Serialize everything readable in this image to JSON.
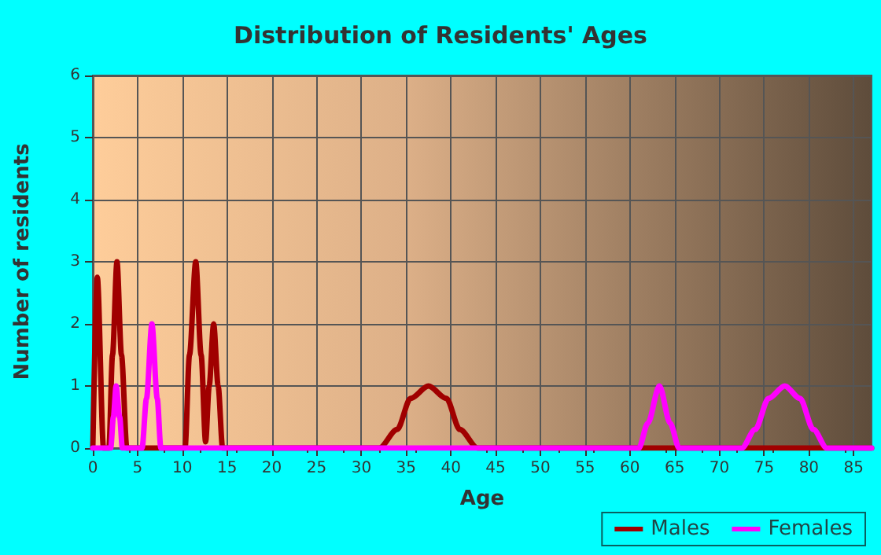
{
  "chart_data": {
    "type": "line",
    "title": "Distribution of Residents' Ages",
    "xlabel": "Age",
    "ylabel": "Number of residents",
    "xlim": [
      0,
      87
    ],
    "xticks": [
      0,
      5,
      10,
      15,
      20,
      25,
      30,
      35,
      40,
      45,
      50,
      55,
      60,
      65,
      70,
      75,
      80,
      85
    ],
    "ylim": [
      0,
      6
    ],
    "yticks": [
      0,
      1,
      2,
      3,
      4,
      5,
      6
    ],
    "grid": true,
    "legend": "bottom right",
    "marker": "none",
    "line_style": "solid",
    "series": [
      {
        "name": "Males",
        "color": "#a00000",
        "x": [
          0,
          0.5,
          1.2,
          1.8,
          2.2,
          2.7,
          3.2,
          3.8,
          10.3,
          10.8,
          11.5,
          12.1,
          12.6,
          13,
          13.5,
          14,
          14.5,
          32,
          34,
          35.5,
          37.5,
          39.5,
          41,
          43,
          87
        ],
        "values": [
          0,
          2.75,
          0,
          0,
          1.5,
          3,
          1.5,
          0,
          0,
          1.5,
          3,
          1.5,
          0.1,
          1,
          2,
          1,
          0,
          0,
          0.3,
          0.8,
          1,
          0.8,
          0.3,
          0,
          0
        ]
      },
      {
        "name": "Females",
        "color": "#ff00ff",
        "x": [
          0,
          2,
          2.3,
          2.6,
          3,
          3.3,
          5.5,
          6,
          6.6,
          7.2,
          7.6,
          61,
          62,
          63.3,
          64.5,
          65.5,
          72.5,
          74,
          75.5,
          77.3,
          79,
          80.5,
          82,
          87
        ],
        "values": [
          0,
          0,
          0.5,
          1,
          0.5,
          0,
          0,
          0.8,
          2,
          0.8,
          0,
          0,
          0.4,
          1,
          0.4,
          0,
          0,
          0.3,
          0.8,
          1,
          0.8,
          0.3,
          0,
          0
        ]
      }
    ]
  }
}
